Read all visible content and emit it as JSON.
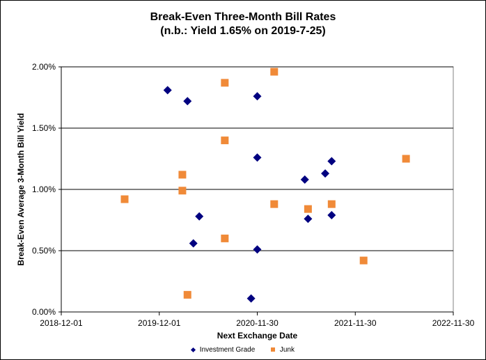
{
  "chart_data": {
    "type": "scatter",
    "title": "Break-Even Three-Month Bill Rates",
    "subtitle": "(n.b.: Yield 1.65% on 2019-7-25)",
    "xlabel": "Next Exchange Date",
    "ylabel": "Break-Even Average 3-Month Bill Yield",
    "x_type": "date",
    "xlim": [
      "2018-12-01",
      "2022-11-30"
    ],
    "ylim": [
      0,
      0.02
    ],
    "x_ticks": [
      "2018-12-01",
      "2019-12-01",
      "2020-11-30",
      "2021-11-30",
      "2022-11-30"
    ],
    "y_ticks": [
      "0.00%",
      "0.50%",
      "1.00%",
      "1.50%",
      "2.00%"
    ],
    "y_tick_values": [
      0,
      0.005,
      0.01,
      0.015,
      0.02
    ],
    "grid": "horizontal",
    "legend_position": "bottom",
    "series": [
      {
        "name": "Investment Grade",
        "marker": "diamond",
        "color": "#000080",
        "points": [
          {
            "x": "2020-01-01",
            "y": 0.0181
          },
          {
            "x": "2020-03-15",
            "y": 0.0172
          },
          {
            "x": "2020-04-06",
            "y": 0.0056
          },
          {
            "x": "2020-04-28",
            "y": 0.0078
          },
          {
            "x": "2020-11-07",
            "y": 0.0011
          },
          {
            "x": "2020-11-30",
            "y": 0.0176
          },
          {
            "x": "2020-11-30",
            "y": 0.0126
          },
          {
            "x": "2020-11-30",
            "y": 0.0051
          },
          {
            "x": "2021-05-26",
            "y": 0.0108
          },
          {
            "x": "2021-06-07",
            "y": 0.0076
          },
          {
            "x": "2021-08-10",
            "y": 0.0113
          },
          {
            "x": "2021-09-03",
            "y": 0.0123
          },
          {
            "x": "2021-09-03",
            "y": 0.0079
          }
        ]
      },
      {
        "name": "Junk",
        "marker": "square",
        "color": "#f08a38",
        "points": [
          {
            "x": "2019-07-25",
            "y": 0.0092
          },
          {
            "x": "2020-02-25",
            "y": 0.0112
          },
          {
            "x": "2020-02-25",
            "y": 0.0099
          },
          {
            "x": "2020-03-15",
            "y": 0.0014
          },
          {
            "x": "2020-08-01",
            "y": 0.0187
          },
          {
            "x": "2020-08-01",
            "y": 0.014
          },
          {
            "x": "2020-08-01",
            "y": 0.006
          },
          {
            "x": "2021-02-01",
            "y": 0.0196
          },
          {
            "x": "2021-02-01",
            "y": 0.0088
          },
          {
            "x": "2021-06-07",
            "y": 0.0084
          },
          {
            "x": "2021-09-03",
            "y": 0.0088
          },
          {
            "x": "2021-12-31",
            "y": 0.0042
          },
          {
            "x": "2022-06-07",
            "y": 0.0125
          }
        ]
      }
    ]
  }
}
